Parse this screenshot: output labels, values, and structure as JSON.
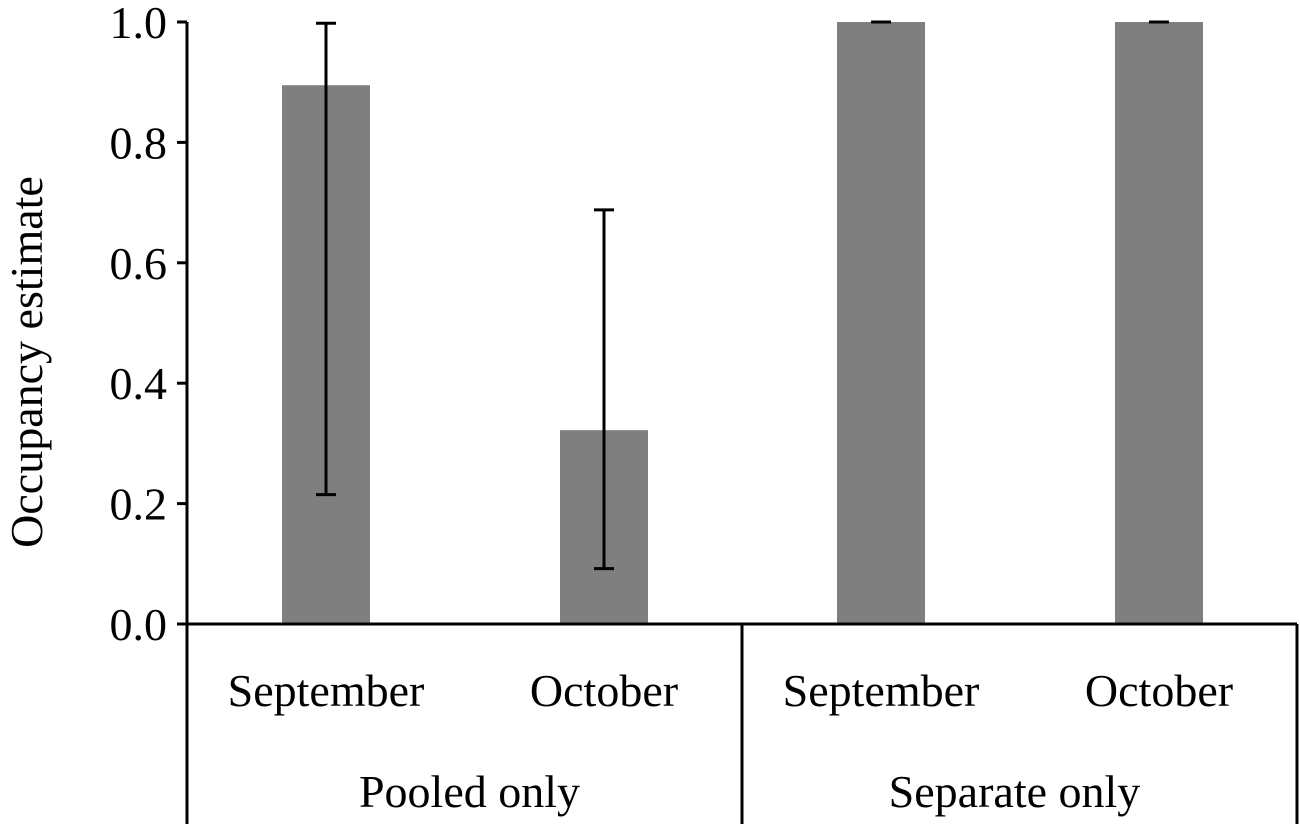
{
  "chart_data": {
    "type": "bar",
    "ylabel": "Occupancy estimate",
    "xlabel": "",
    "title": "",
    "ylim": [
      0,
      1.0
    ],
    "yticks": [
      "0.0",
      "0.2",
      "0.4",
      "0.6",
      "0.8",
      "1.0"
    ],
    "grid": false,
    "legend": "none",
    "bar_color": "#7f7f7f",
    "groups": [
      {
        "label": "Pooled only",
        "categories": [
          "September",
          "October"
        ]
      },
      {
        "label": "Separate only",
        "categories": [
          "September",
          "October"
        ]
      }
    ],
    "categories": [
      "September",
      "October",
      "September",
      "October"
    ],
    "values": [
      0.895,
      0.322,
      1.0,
      1.0
    ],
    "error_low": [
      0.215,
      0.092,
      1.0,
      1.0
    ],
    "error_high": [
      0.998,
      0.688,
      1.0,
      1.0
    ]
  }
}
